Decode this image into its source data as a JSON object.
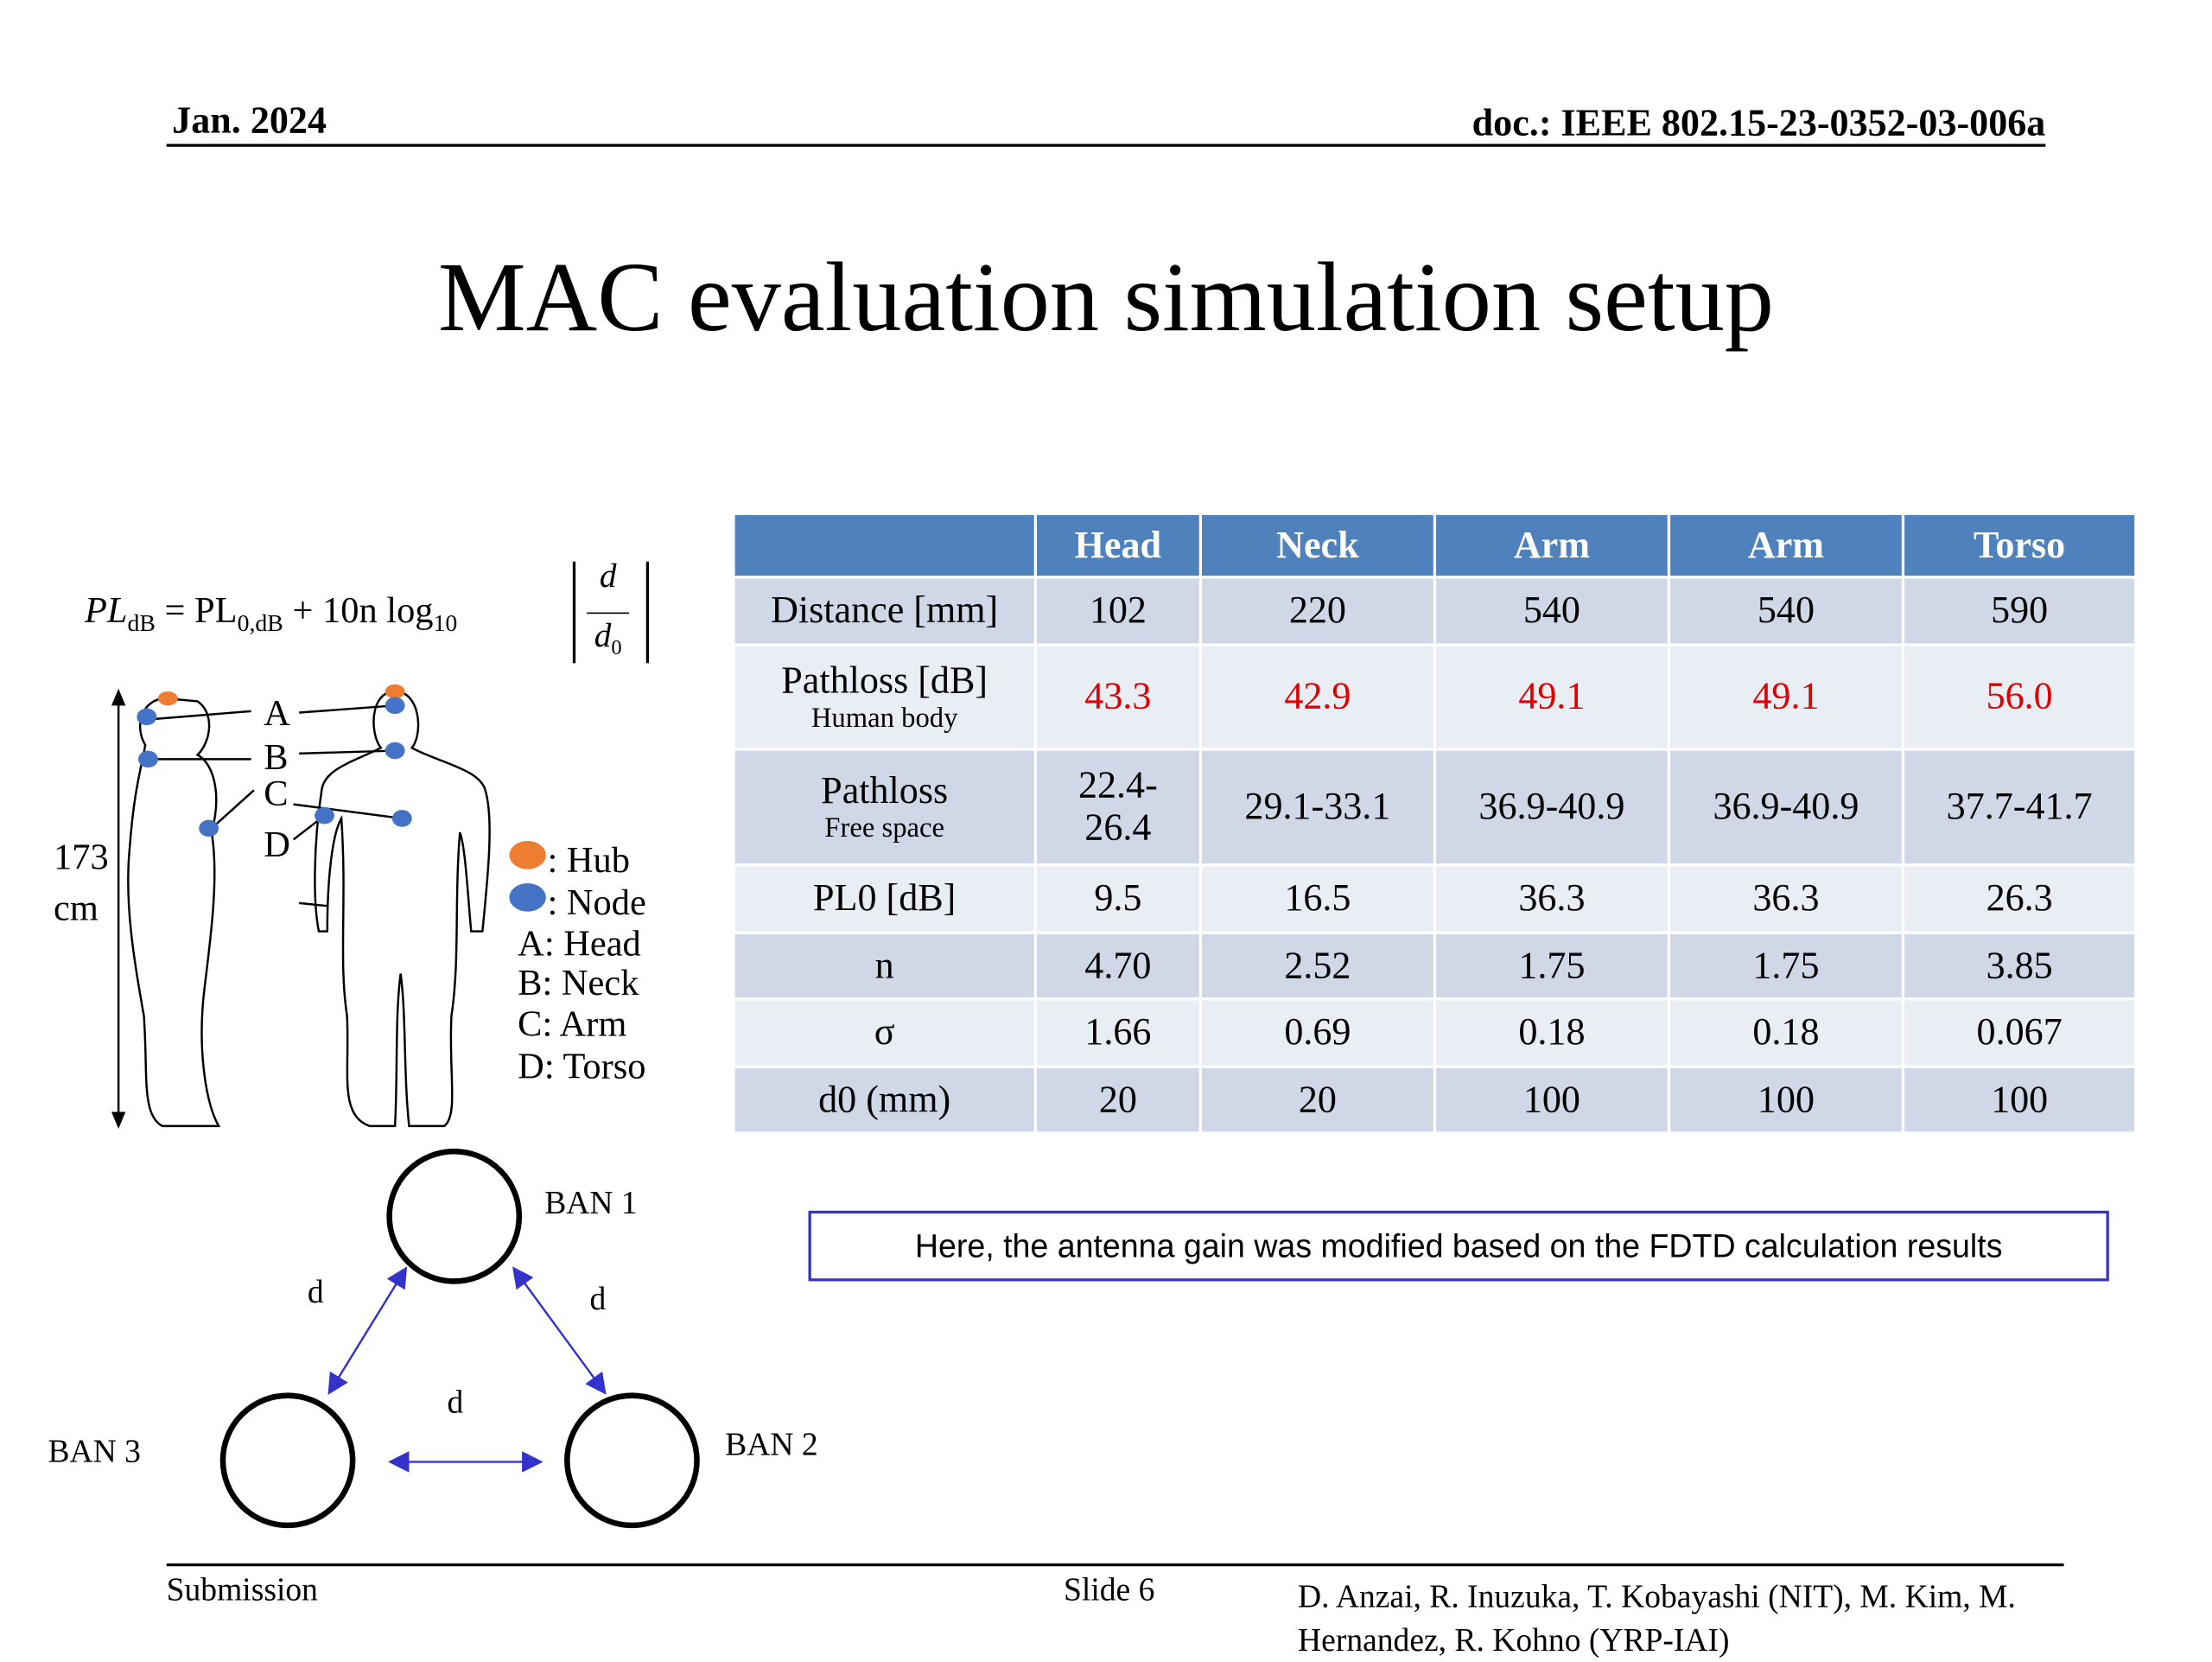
{
  "header": {
    "date": "Jan. 2024",
    "doc_id": "doc.: IEEE 802.15-23-0352-03-006a"
  },
  "title": "MAC evaluation simulation setup",
  "formula": {
    "lhs": "PL",
    "lhs_sub": "dB",
    "rhs": "= PL",
    "rhs_sub": "0,dB",
    "term": "+ 10n log",
    "term_sub": "10",
    "num": "d",
    "den": "d",
    "den_sub": "0"
  },
  "body_figure": {
    "height": "173",
    "height_unit": "cm",
    "labels": [
      "A",
      "B",
      "C",
      "D"
    ],
    "legend": [
      ": Hub",
      ": Node",
      "A: Head",
      "B: Neck",
      "C: Arm",
      "D: Torso"
    ]
  },
  "ban_figure": {
    "bans": [
      "BAN 1",
      "BAN 2",
      "BAN 3"
    ],
    "distance_labels": [
      "d",
      "d",
      "d"
    ]
  },
  "table": {
    "header": [
      "Head",
      "Neck",
      "Arm",
      "Arm",
      "Torso"
    ],
    "rows": [
      {
        "label": "Distance [mm]",
        "cells": [
          "102",
          "220",
          "540",
          "540",
          "590"
        ]
      },
      {
        "label": "Pathloss [dB]",
        "sublabel": "Human body",
        "cells": [
          "43.3",
          "42.9",
          "49.1",
          "49.1",
          "56.0"
        ]
      },
      {
        "label": "Pathloss",
        "sublabel": "Free space",
        "cells": [
          "22.4-26.4",
          "29.1-33.1",
          "36.9-40.9",
          "36.9-40.9",
          "37.7-41.7"
        ]
      },
      {
        "label": "PL0 [dB]",
        "cells": [
          "9.5",
          "16.5",
          "36.3",
          "36.3",
          "26.3"
        ]
      },
      {
        "label": "n",
        "cells": [
          "4.70",
          "2.52",
          "1.75",
          "1.75",
          "3.85"
        ]
      },
      {
        "label": "σ",
        "cells": [
          "1.66",
          "0.69",
          "0.18",
          "0.18",
          "0.067"
        ]
      },
      {
        "label": "d0 (mm)",
        "cells": [
          "20",
          "20",
          "100",
          "100",
          "100"
        ]
      }
    ]
  },
  "note": "Here, the antenna gain was modified based on the FDTD calculation results",
  "footer": {
    "left": "Submission",
    "center": "Slide 6",
    "authors": "D. Anzai, R. Inuzuka, T. Kobayashi (NIT), M. Kim, M. Hernandez, R. Kohno (YRP-IAI)"
  }
}
